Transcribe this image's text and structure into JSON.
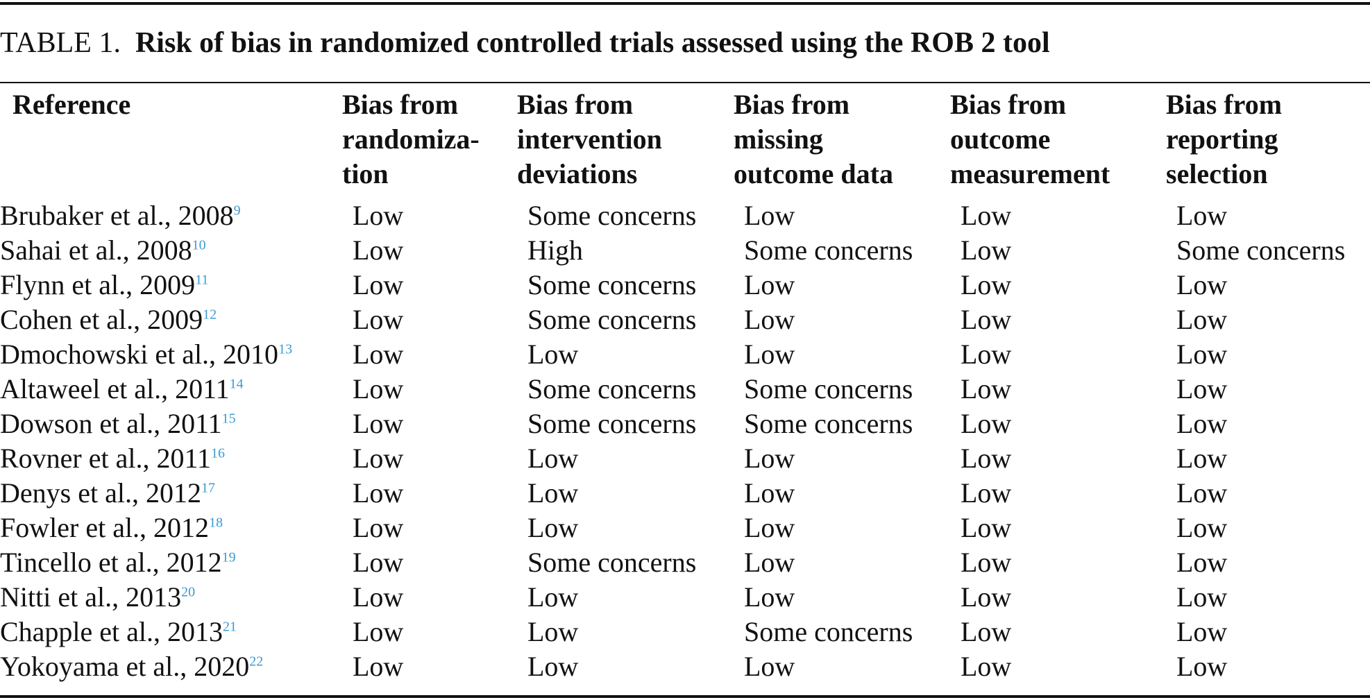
{
  "caption": {
    "label": "TABLE 1.",
    "title": "Risk of bias in randomized controlled trials assessed using the ROB 2 tool"
  },
  "header": {
    "reference": "Reference",
    "randomization": [
      "Bias from",
      "randomiza-",
      "tion"
    ],
    "intervention": [
      "Bias from",
      "intervention",
      "deviations"
    ],
    "missing": [
      "Bias from",
      "missing",
      "outcome data"
    ],
    "measurement": [
      "Bias from",
      "outcome",
      "measurement"
    ],
    "reporting": [
      "Bias from",
      "reporting",
      "selection"
    ]
  },
  "rows": [
    {
      "ref": "Brubaker et al., 2008",
      "cite": "9",
      "randomization": "Low",
      "intervention": "Some concerns",
      "missing": "Low",
      "measurement": "Low",
      "reporting": "Low"
    },
    {
      "ref": "Sahai et al., 2008",
      "cite": "10",
      "randomization": "Low",
      "intervention": "High",
      "missing": "Some concerns",
      "measurement": "Low",
      "reporting": "Some concerns"
    },
    {
      "ref": "Flynn et al., 2009",
      "cite": "11",
      "randomization": "Low",
      "intervention": "Some concerns",
      "missing": "Low",
      "measurement": "Low",
      "reporting": "Low"
    },
    {
      "ref": "Cohen et al., 2009",
      "cite": "12",
      "randomization": "Low",
      "intervention": "Some concerns",
      "missing": "Low",
      "measurement": "Low",
      "reporting": "Low"
    },
    {
      "ref": "Dmochowski et al., 2010",
      "cite": "13",
      "randomization": "Low",
      "intervention": "Low",
      "missing": "Low",
      "measurement": "Low",
      "reporting": "Low"
    },
    {
      "ref": "Altaweel et al., 2011",
      "cite": "14",
      "randomization": "Low",
      "intervention": "Some concerns",
      "missing": "Some concerns",
      "measurement": "Low",
      "reporting": "Low"
    },
    {
      "ref": "Dowson et al., 2011",
      "cite": "15",
      "randomization": "Low",
      "intervention": "Some concerns",
      "missing": "Some concerns",
      "measurement": "Low",
      "reporting": "Low"
    },
    {
      "ref": "Rovner et al., 2011",
      "cite": "16",
      "randomization": "Low",
      "intervention": "Low",
      "missing": "Low",
      "measurement": "Low",
      "reporting": "Low"
    },
    {
      "ref": "Denys et al., 2012",
      "cite": "17",
      "randomization": "Low",
      "intervention": "Low",
      "missing": "Low",
      "measurement": "Low",
      "reporting": "Low"
    },
    {
      "ref": "Fowler et al., 2012",
      "cite": "18",
      "randomization": "Low",
      "intervention": "Low",
      "missing": "Low",
      "measurement": "Low",
      "reporting": "Low"
    },
    {
      "ref": "Tincello et al., 2012",
      "cite": "19",
      "randomization": "Low",
      "intervention": "Some concerns",
      "missing": "Low",
      "measurement": "Low",
      "reporting": "Low"
    },
    {
      "ref": "Nitti et al., 2013",
      "cite": "20",
      "randomization": "Low",
      "intervention": "Low",
      "missing": "Low",
      "measurement": "Low",
      "reporting": "Low"
    },
    {
      "ref": "Chapple et al., 2013",
      "cite": "21",
      "randomization": "Low",
      "intervention": "Low",
      "missing": "Some concerns",
      "measurement": "Low",
      "reporting": "Low"
    },
    {
      "ref": "Yokoyama et al., 2020",
      "cite": "22",
      "randomization": "Low",
      "intervention": "Low",
      "missing": "Low",
      "measurement": "Low",
      "reporting": "Low"
    }
  ],
  "colors": {
    "citation_link": "#3a9bd1",
    "text": "#111111"
  }
}
